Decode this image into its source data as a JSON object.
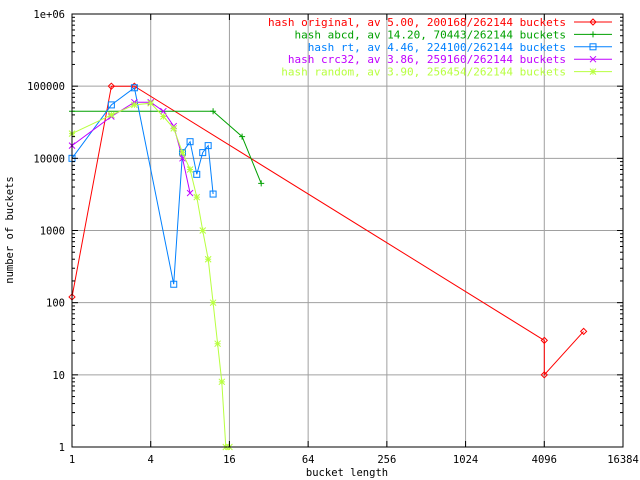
{
  "chart_data": {
    "type": "line",
    "title": "",
    "xlabel": "bucket length",
    "ylabel": "number of buckets",
    "x_scale": "log2",
    "y_scale": "log10",
    "xlim": [
      1,
      16384
    ],
    "ylim": [
      1,
      1000000
    ],
    "grid": true,
    "legend_position": "top-right",
    "x_ticks": [
      "1",
      "4",
      "16",
      "64",
      "256",
      "1024",
      "4096",
      "16384"
    ],
    "x_tick_values": [
      1,
      4,
      16,
      64,
      256,
      1024,
      4096,
      16384
    ],
    "y_ticks": [
      "1",
      "10",
      "100",
      "1000",
      "10000",
      "100000",
      "1e+06"
    ],
    "y_tick_values": [
      1,
      10,
      100,
      1000,
      10000,
      100000,
      1000000
    ],
    "series": [
      {
        "name": "hash original, av 5.00, 200168/262144 buckets",
        "color": "#ff0000",
        "marker": "diamond",
        "points": [
          [
            1,
            120
          ],
          [
            2,
            100000
          ],
          [
            3,
            100000
          ],
          [
            4096,
            30
          ],
          [
            4096,
            10
          ],
          [
            8192,
            40
          ]
        ]
      },
      {
        "name": "hash abcd, av 14.20, 70443/262144 buckets",
        "color": "#00a000",
        "marker": "plus",
        "points": [
          [
            1,
            45000
          ],
          [
            12,
            45000
          ],
          [
            20,
            20000
          ],
          [
            28,
            4500
          ]
        ]
      },
      {
        "name": "hash rt, av 4.46, 224100/262144 buckets",
        "color": "#0080ff",
        "marker": "square",
        "points": [
          [
            1,
            10000
          ],
          [
            2,
            55000
          ],
          [
            3,
            95000
          ],
          [
            6,
            180
          ],
          [
            7,
            12000
          ],
          [
            8,
            17000
          ],
          [
            9,
            6000
          ],
          [
            10,
            12000
          ],
          [
            11,
            15000
          ],
          [
            12,
            3200
          ]
        ]
      },
      {
        "name": "hash crc32, av 3.86, 259160/262144 buckets",
        "color": "#c000ff",
        "marker": "cross",
        "points": [
          [
            1,
            15000
          ],
          [
            2,
            38000
          ],
          [
            3,
            60000
          ],
          [
            4,
            60000
          ],
          [
            5,
            45000
          ],
          [
            6,
            28000
          ],
          [
            7,
            10000
          ],
          [
            8,
            3300
          ]
        ]
      },
      {
        "name": "hash random, av 3.90, 256454/262144 buckets",
        "color": "#b8ff40",
        "marker": "star",
        "points": [
          [
            1,
            22000
          ],
          [
            2,
            40000
          ],
          [
            3,
            55000
          ],
          [
            4,
            58000
          ],
          [
            5,
            38000
          ],
          [
            6,
            26000
          ],
          [
            7,
            12000
          ],
          [
            8,
            7000
          ],
          [
            9,
            2900
          ],
          [
            10,
            1000
          ],
          [
            11,
            400
          ],
          [
            12,
            100
          ],
          [
            13,
            27
          ],
          [
            14,
            8
          ],
          [
            15,
            1
          ],
          [
            16,
            1
          ]
        ]
      }
    ]
  }
}
